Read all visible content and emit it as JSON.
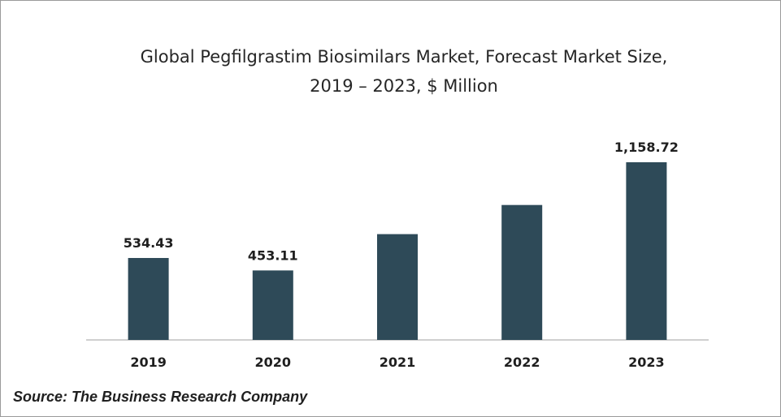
{
  "chart_data": {
    "type": "bar",
    "title_lines": [
      "Global Pegfilgrastim Biosimilars Market, Forecast Market Size,",
      "2019 – 2023, $ Million"
    ],
    "categories": [
      "2019",
      "2020",
      "2021",
      "2022",
      "2023"
    ],
    "values": [
      534.43,
      453.11,
      690,
      880,
      1158.72
    ],
    "data_labels": [
      "534.43",
      "453.11",
      "",
      "",
      "1,158.72"
    ],
    "xlabel": "",
    "ylabel": "",
    "ylim": [
      0,
      1200
    ],
    "grid": false,
    "legend": "none",
    "bar_color": "#2e4a58"
  },
  "source": "Source: The Business Research Company"
}
